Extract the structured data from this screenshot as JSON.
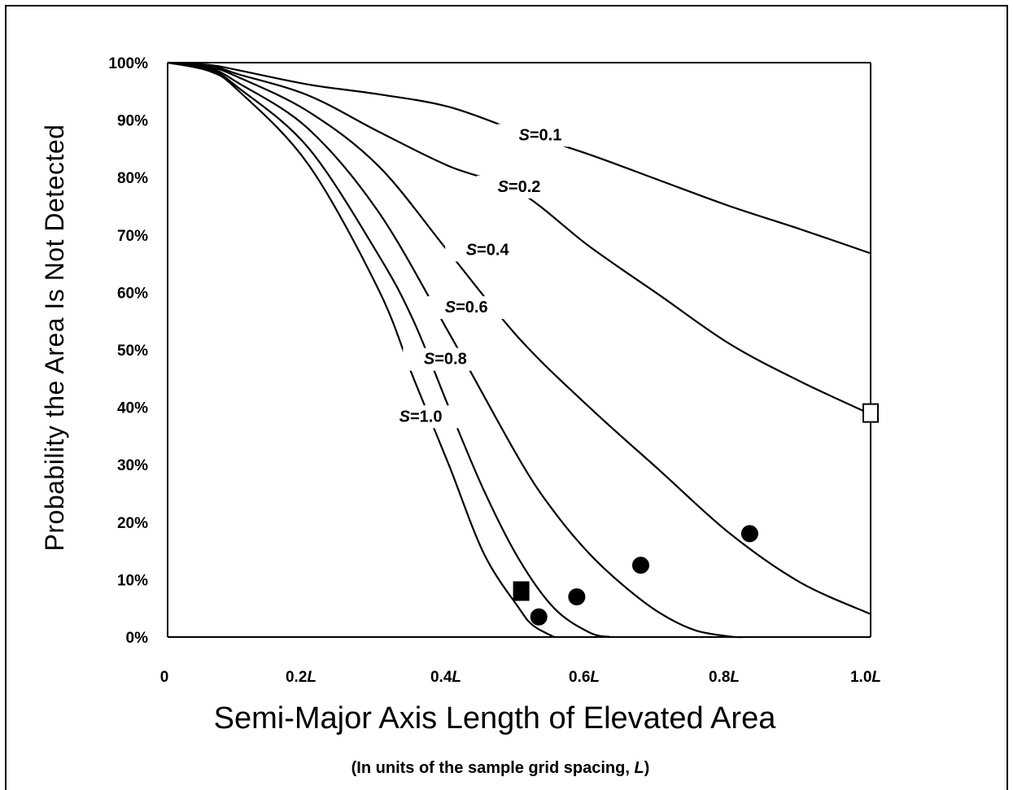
{
  "chart_data": {
    "type": "line",
    "xlabel": "Semi-Major Axis Length of Elevated Area",
    "xlabel_note": "(In units of the sample grid spacing, L)",
    "ylabel": "Probability the Area Is Not Detected",
    "xlim": [
      0,
      1.0
    ],
    "ylim": [
      0,
      100
    ],
    "x_ticks": [
      {
        "value": 0.0,
        "label": "0"
      },
      {
        "value": 0.2,
        "label": "0.2",
        "unit": "L"
      },
      {
        "value": 0.4,
        "label": "0.4",
        "unit": "L"
      },
      {
        "value": 0.6,
        "label": "0.6",
        "unit": "L"
      },
      {
        "value": 0.8,
        "label": "0.8",
        "unit": "L"
      },
      {
        "value": 1.0,
        "label": "1.0",
        "unit": "L"
      }
    ],
    "y_ticks": [
      {
        "value": 0,
        "label": "0%"
      },
      {
        "value": 10,
        "label": "10%"
      },
      {
        "value": 20,
        "label": "20%"
      },
      {
        "value": 30,
        "label": "30%"
      },
      {
        "value": 40,
        "label": "40%"
      },
      {
        "value": 50,
        "label": "50%"
      },
      {
        "value": 60,
        "label": "60%"
      },
      {
        "value": 70,
        "label": "70%"
      },
      {
        "value": 80,
        "label": "80%"
      },
      {
        "value": 90,
        "label": "90%"
      },
      {
        "value": 100,
        "label": "100%"
      }
    ],
    "grid": false,
    "legend": "none",
    "series": [
      {
        "label_var": "S",
        "label_val": "=0.1",
        "points": [
          [
            0,
            100
          ],
          [
            0.06,
            99.6
          ],
          [
            0.1,
            98.7
          ],
          [
            0.2,
            96.2
          ],
          [
            0.3,
            94.5
          ],
          [
            0.4,
            92.3
          ],
          [
            0.5,
            88
          ],
          [
            0.6,
            84
          ],
          [
            0.7,
            79.5
          ],
          [
            0.8,
            75
          ],
          [
            0.9,
            71
          ],
          [
            1.0,
            66.8
          ]
        ],
        "label_at": [
          0.53,
          86.5
        ]
      },
      {
        "label_var": "S",
        "label_val": "=0.2",
        "points": [
          [
            0,
            100
          ],
          [
            0.06,
            99.5
          ],
          [
            0.1,
            98
          ],
          [
            0.2,
            94.3
          ],
          [
            0.3,
            88
          ],
          [
            0.4,
            82
          ],
          [
            0.5,
            77.5
          ],
          [
            0.6,
            68
          ],
          [
            0.7,
            59.5
          ],
          [
            0.8,
            51
          ],
          [
            0.9,
            44.5
          ],
          [
            1.0,
            38.8
          ]
        ],
        "label_at": [
          0.5,
          77.5
        ]
      },
      {
        "label_var": "S",
        "label_val": "=0.4",
        "points": [
          [
            0,
            100
          ],
          [
            0.06,
            99.2
          ],
          [
            0.1,
            97.5
          ],
          [
            0.2,
            91.5
          ],
          [
            0.3,
            82
          ],
          [
            0.4,
            67
          ],
          [
            0.5,
            52
          ],
          [
            0.6,
            40
          ],
          [
            0.7,
            29
          ],
          [
            0.8,
            18
          ],
          [
            0.9,
            9.5
          ],
          [
            1.0,
            4
          ]
        ],
        "label_at": [
          0.455,
          66.5
        ]
      },
      {
        "label_var": "S",
        "label_val": "=0.6",
        "points": [
          [
            0,
            100
          ],
          [
            0.06,
            99
          ],
          [
            0.1,
            96.5
          ],
          [
            0.2,
            88.5
          ],
          [
            0.3,
            74
          ],
          [
            0.4,
            53
          ],
          [
            0.5,
            31
          ],
          [
            0.55,
            21.8
          ],
          [
            0.6,
            14.5
          ],
          [
            0.65,
            8.8
          ],
          [
            0.7,
            4.2
          ],
          [
            0.75,
            1.2
          ],
          [
            0.8,
            0.1
          ],
          [
            0.82,
            0
          ]
        ],
        "label_at": [
          0.425,
          56.5
        ]
      },
      {
        "label_var": "S",
        "label_val": "=0.8",
        "points": [
          [
            0,
            100
          ],
          [
            0.06,
            98.8
          ],
          [
            0.1,
            95.7
          ],
          [
            0.2,
            85.2
          ],
          [
            0.3,
            66.5
          ],
          [
            0.35,
            55
          ],
          [
            0.4,
            40
          ],
          [
            0.45,
            25.5
          ],
          [
            0.5,
            13.5
          ],
          [
            0.55,
            5
          ],
          [
            0.6,
            0.8
          ],
          [
            0.63,
            0
          ]
        ],
        "label_at": [
          0.395,
          47.5
        ]
      },
      {
        "label_var": "S",
        "label_val": "=1.0",
        "points": [
          [
            0,
            100
          ],
          [
            0.06,
            98.5
          ],
          [
            0.1,
            95.2
          ],
          [
            0.2,
            82.3
          ],
          [
            0.3,
            60.5
          ],
          [
            0.35,
            45
          ],
          [
            0.4,
            30
          ],
          [
            0.45,
            14.5
          ],
          [
            0.5,
            5
          ],
          [
            0.52,
            2
          ],
          [
            0.55,
            0
          ]
        ],
        "label_at": [
          0.36,
          37.5
        ]
      }
    ],
    "markers": [
      {
        "shape": "circle",
        "filled": true,
        "x": 0.828,
        "y": 18
      },
      {
        "shape": "circle",
        "filled": true,
        "x": 0.673,
        "y": 12.5
      },
      {
        "shape": "circle",
        "filled": true,
        "x": 0.582,
        "y": 7
      },
      {
        "shape": "circle",
        "filled": true,
        "x": 0.528,
        "y": 3.5
      },
      {
        "shape": "square",
        "filled": true,
        "x": 0.503,
        "y": 8
      },
      {
        "shape": "square",
        "filled": false,
        "x": 1.0,
        "y": 39
      }
    ]
  }
}
